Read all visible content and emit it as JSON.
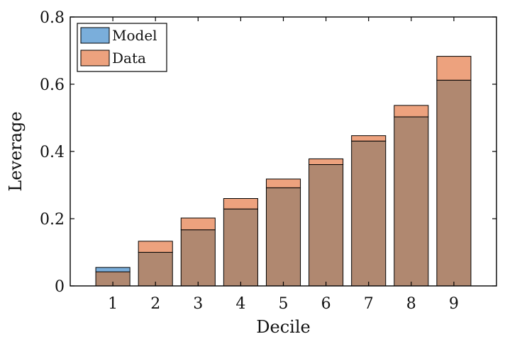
{
  "chart_data": {
    "type": "bar",
    "xlabel": "Decile",
    "ylabel": "Leverage",
    "categories": [
      "1",
      "2",
      "3",
      "4",
      "5",
      "6",
      "7",
      "8",
      "9"
    ],
    "series": [
      {
        "name": "Model",
        "values": [
          0.055,
          0.1,
          0.167,
          0.229,
          0.292,
          0.361,
          0.431,
          0.503,
          0.612
        ],
        "color": "#7aaedb"
      },
      {
        "name": "Data",
        "values": [
          0.042,
          0.133,
          0.202,
          0.26,
          0.318,
          0.378,
          0.447,
          0.537,
          0.683
        ],
        "color": "#eda27e"
      }
    ],
    "overlap_color": "#b08870",
    "ylim": [
      0,
      0.8
    ],
    "xlim": [
      0,
      10
    ],
    "yticks": [
      0,
      0.2,
      0.4,
      0.6,
      0.8
    ],
    "yticklabels": [
      "0",
      "0.2",
      "0.4",
      "0.6",
      "0.8"
    ],
    "grid": false,
    "legend_position": "top-left"
  }
}
